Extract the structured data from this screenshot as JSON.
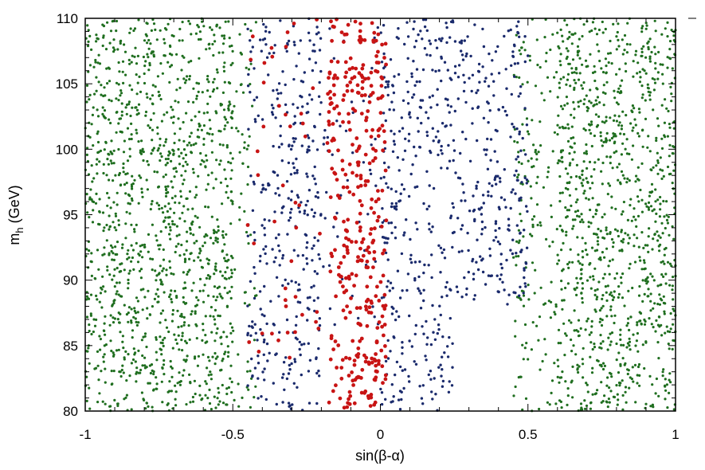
{
  "chart_data": {
    "type": "scatter",
    "title": "",
    "xlabel": "sin(β-α)",
    "ylabel": "m_h (GeV)",
    "ylabel_main": "m",
    "ylabel_sub": "h",
    "ylabel_rest": " (GeV)",
    "xlim": [
      -1,
      1
    ],
    "ylim": [
      80,
      110
    ],
    "xticks": [
      -1,
      -0.5,
      0,
      0.5,
      1
    ],
    "xtick_labels": [
      "-1",
      "-0.5",
      "0",
      "0.5",
      "1"
    ],
    "yticks": [
      80,
      85,
      90,
      95,
      100,
      105,
      110
    ],
    "ytick_labels": [
      "80",
      "85",
      "90",
      "95",
      "100",
      "105",
      "110"
    ],
    "grid": false,
    "legend": "none",
    "series": [
      {
        "color": "#1f6e1f",
        "marker_radius": 1.6,
        "regions": [
          {
            "x": [
              -1.0,
              -0.5
            ],
            "y": [
              80,
              110
            ],
            "count": 1300
          },
          {
            "x": [
              -0.5,
              -0.42
            ],
            "y": [
              80,
              110
            ],
            "count": 60
          },
          {
            "x": [
              0.45,
              0.6
            ],
            "y": [
              80,
              110
            ],
            "count": 160
          },
          {
            "x": [
              0.6,
              1.0
            ],
            "y": [
              80,
              110
            ],
            "count": 1050
          }
        ]
      },
      {
        "color": "#1a2a6c",
        "marker_radius": 1.7,
        "regions": [
          {
            "x": [
              -0.45,
              -0.2
            ],
            "y": [
              80,
              110
            ],
            "count": 330
          },
          {
            "x": [
              -0.25,
              0.05
            ],
            "y": [
              86,
              110
            ],
            "count": 90
          },
          {
            "x": [
              0.0,
              0.25
            ],
            "y": [
              80,
              110
            ],
            "count": 330
          },
          {
            "x": [
              0.25,
              0.5
            ],
            "y": [
              88,
              110
            ],
            "count": 260
          }
        ]
      },
      {
        "color": "#c81414",
        "marker_radius": 2.4,
        "regions": [
          {
            "x": [
              -0.18,
              0.02
            ],
            "y": [
              80,
              110
            ],
            "count": 360
          },
          {
            "x": [
              -0.45,
              -0.2
            ],
            "y": [
              84,
              110
            ],
            "count": 45
          }
        ]
      }
    ]
  }
}
